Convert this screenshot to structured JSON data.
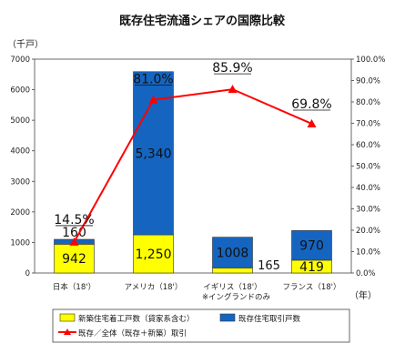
{
  "chart_data": {
    "type": "bar",
    "title": "既存住宅流通シェアの国際比較",
    "y_unit": "（千戸）",
    "x_unit": "（年）",
    "categories": [
      "日本（18'）",
      "アメリカ（18'）",
      "イギリス（18'）",
      "フランス（18'）"
    ],
    "category_notes": [
      "",
      "",
      "※イングランドのみ",
      ""
    ],
    "ylim": [
      0,
      7000
    ],
    "yticks": [
      "0",
      "1000",
      "2000",
      "3000",
      "4000",
      "5000",
      "6000",
      "7000"
    ],
    "y2lim": [
      0,
      100
    ],
    "y2ticks": [
      "0.0%",
      "10.0%",
      "20.0%",
      "30.0%",
      "40.0%",
      "50.0%",
      "60.0%",
      "70.0%",
      "80.0%",
      "90.0%",
      "100.0%"
    ],
    "stacked": true,
    "series": [
      {
        "name": "新築住宅着工戸数（貸家系含む）",
        "type": "bar",
        "color": "#ffff00",
        "values": [
          942,
          1250,
          165,
          419
        ],
        "labels": [
          "942",
          "1,250",
          "165",
          "419"
        ]
      },
      {
        "name": "既存住宅取引戸数",
        "type": "bar",
        "color": "#1565c0",
        "values": [
          160,
          5340,
          1008,
          970
        ],
        "labels": [
          "160",
          "5,340",
          "1008",
          "970"
        ]
      },
      {
        "name": "既存／全体（既存＋新築）取引",
        "type": "line",
        "axis": "right",
        "color": "#ff0000",
        "values": [
          14.5,
          81.0,
          85.9,
          69.8
        ],
        "labels": [
          "14.5%",
          "81.0%",
          "85.9%",
          "69.8%"
        ]
      }
    ],
    "grid": false,
    "legend": "bottom"
  }
}
